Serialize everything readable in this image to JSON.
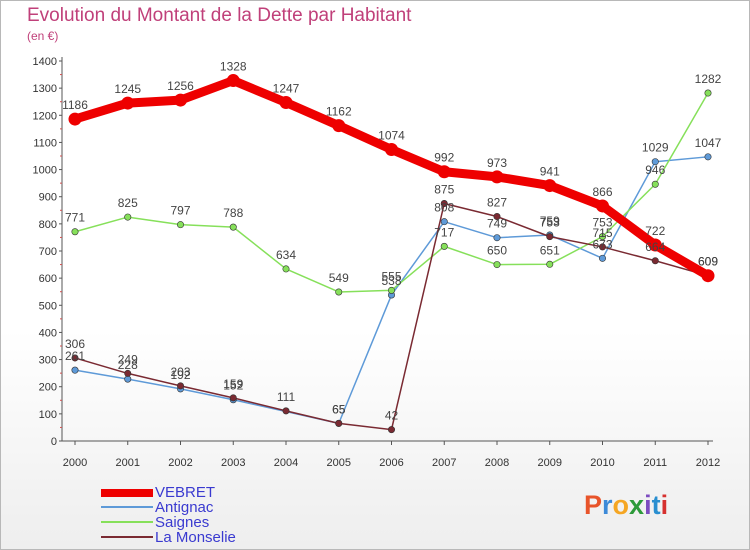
{
  "title": "Evolution du Montant de la Dette par Habitant",
  "subtitle": "(en €)",
  "logo": {
    "letters": [
      "P",
      "r",
      "o",
      "x",
      "i",
      "t",
      "i"
    ],
    "colors": [
      "#e8542a",
      "#3d8ad8",
      "#f5a623",
      "#2d9a3a",
      "#7d4cc0",
      "#2a8fd0",
      "#d6312f"
    ]
  },
  "chart_data": {
    "type": "line",
    "title": "Evolution du Montant de la Dette par Habitant",
    "ylabel": "(en €)",
    "xlabel": "",
    "ylim": [
      0,
      1400
    ],
    "yticks": [
      0,
      100,
      200,
      300,
      400,
      500,
      600,
      700,
      800,
      900,
      1000,
      1100,
      1200,
      1300,
      1400
    ],
    "grid": false,
    "categories": [
      "2000",
      "2001",
      "2002",
      "2003",
      "2004",
      "2005",
      "2006",
      "2007",
      "2008",
      "2009",
      "2010",
      "2011",
      "2012"
    ],
    "series": [
      {
        "name": "VEBRET",
        "color": "#ee0000",
        "values": [
          1186,
          1245,
          1256,
          1328,
          1247,
          1162,
          1074,
          992,
          973,
          941,
          866,
          722,
          609
        ]
      },
      {
        "name": "Antignac",
        "color": "#5e9ad8",
        "values": [
          261,
          228,
          192,
          152,
          null,
          65,
          538,
          808,
          749,
          759,
          673,
          1029,
          1047
        ]
      },
      {
        "name": "Saignes",
        "color": "#86e05a",
        "values": [
          771,
          825,
          797,
          788,
          634,
          549,
          555,
          717,
          650,
          651,
          753,
          946,
          1282
        ]
      },
      {
        "name": "La Monselie",
        "color": "#7a2a32",
        "values": [
          306,
          249,
          203,
          159,
          111,
          65,
          42,
          875,
          827,
          753,
          715,
          664,
          609
        ]
      }
    ],
    "data_labels": [
      {
        "series": "VEBRET",
        "labels": [
          "1186",
          "1245",
          "1256",
          "1328",
          "1247",
          "1162",
          "1074",
          "992",
          "973",
          "941",
          "866",
          "722",
          "609"
        ]
      },
      {
        "series": "Antignac",
        "labels": [
          "261",
          "228",
          "192",
          "152",
          "",
          "65",
          "538",
          "808",
          "749",
          "759",
          "673",
          "1029",
          "1047"
        ]
      },
      {
        "series": "Saignes",
        "labels": [
          "771",
          "825",
          "797",
          "788",
          "634",
          "549",
          "555",
          "717",
          "650",
          "651",
          "753",
          "946",
          "1282"
        ]
      },
      {
        "series": "La Monselie",
        "labels": [
          "306",
          "249",
          "203",
          "159",
          "111",
          "65",
          "42",
          "875",
          "827",
          "753",
          "715",
          "664",
          "609"
        ]
      }
    ]
  }
}
